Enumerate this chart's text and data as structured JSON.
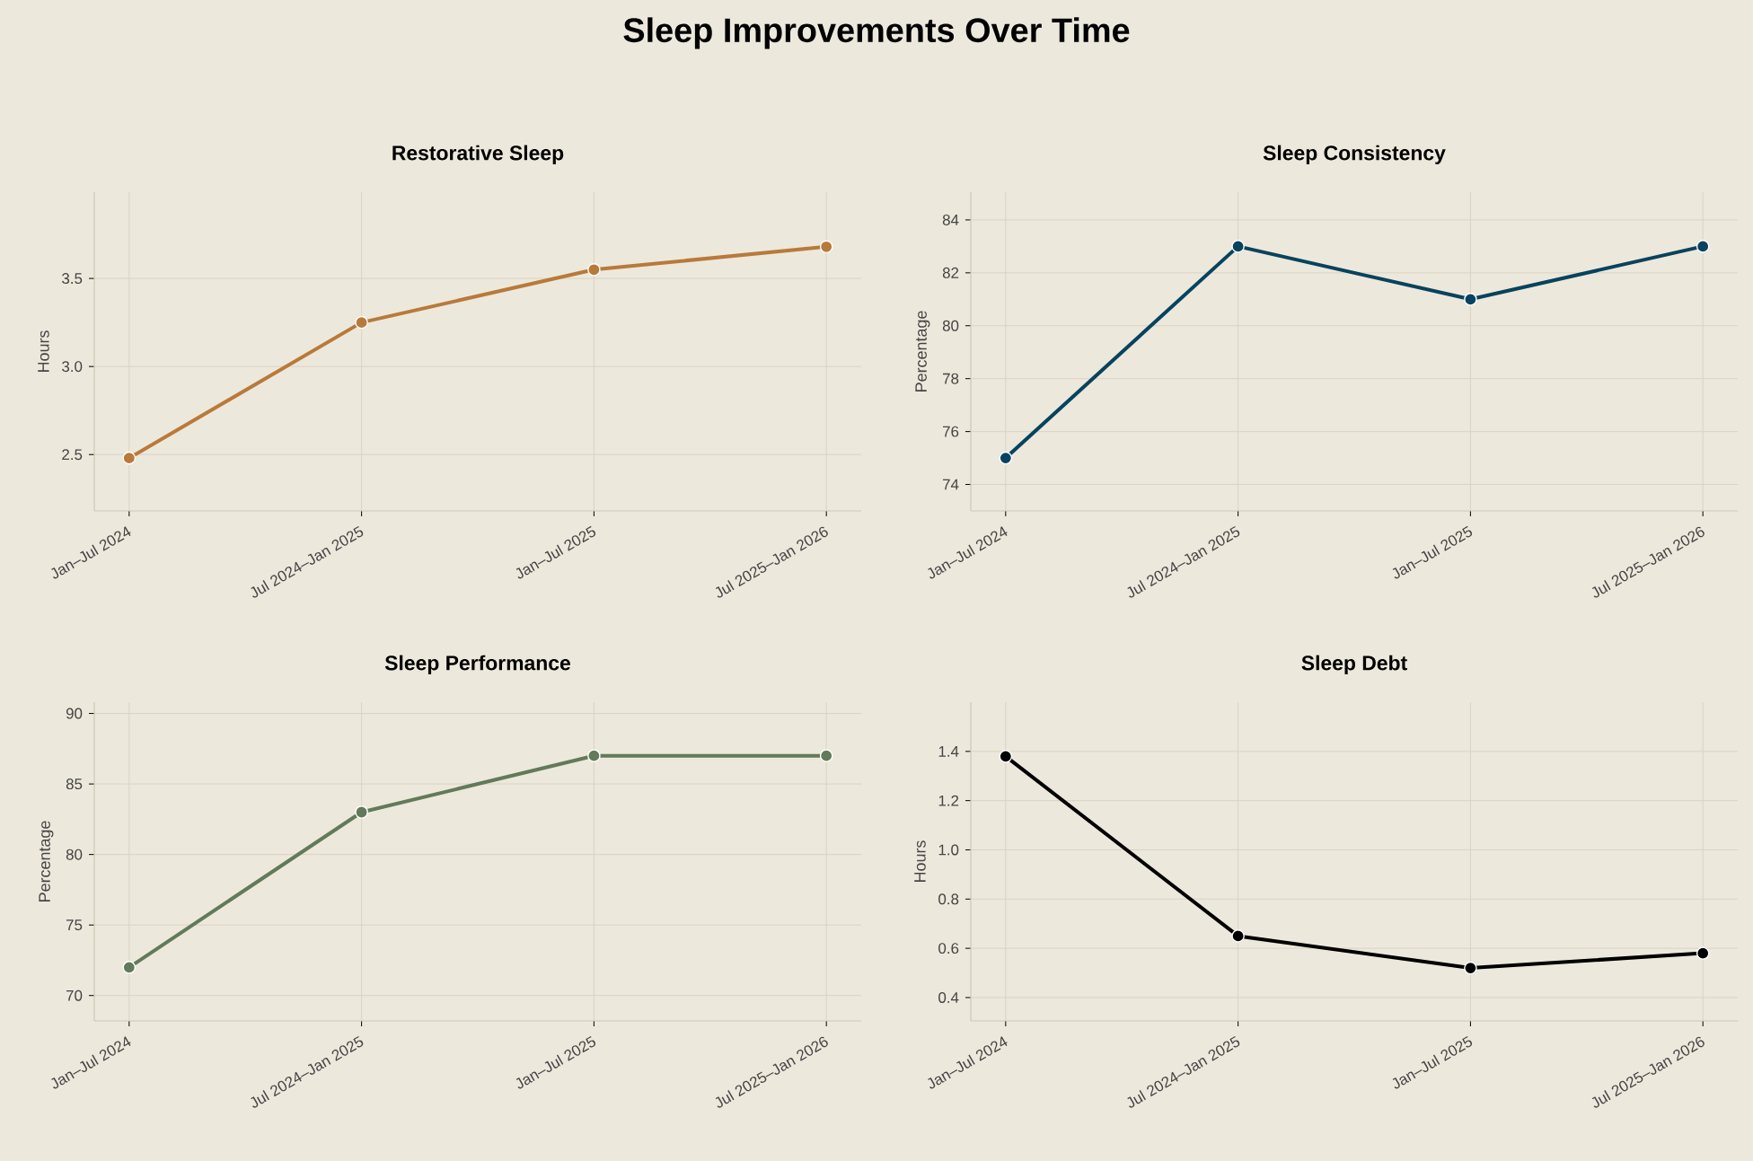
{
  "chart_data": [
    {
      "type": "other",
      "title": "Sleep Improvements Over Time"
    },
    {
      "type": "line",
      "title": "Restorative Sleep",
      "ylabel": "Hours",
      "categories": [
        "Jan–Jul 2024",
        "Jul 2024–Jan 2025",
        "Jan–Jul 2025",
        "Jul 2025–Jan 2026"
      ],
      "values": [
        2.48,
        3.25,
        3.55,
        3.68
      ],
      "color": "#b87a3a",
      "ylim": [
        2.18,
        3.99
      ],
      "yticks": [
        2.5,
        {
          "value": 3,
          "label": "3.0"
        },
        3.5
      ],
      "grid": true,
      "marker": "circle",
      "line_style": "solid"
    },
    {
      "type": "line",
      "title": "Sleep Consistency",
      "ylabel": "Percentage",
      "categories": [
        "Jan–Jul 2024",
        "Jul 2024–Jan 2025",
        "Jan–Jul 2025",
        "Jul 2025–Jan 2026"
      ],
      "values": [
        75,
        83,
        81,
        83
      ],
      "color": "#07435e",
      "ylim": [
        73,
        85.05
      ],
      "yticks": [
        74,
        76,
        78,
        80,
        82,
        84
      ],
      "grid": true,
      "marker": "circle",
      "line_style": "solid"
    },
    {
      "type": "line",
      "title": "Sleep Performance",
      "ylabel": "Percentage",
      "categories": [
        "Jan–Jul 2024",
        "Jul 2024–Jan 2025",
        "Jan–Jul 2025",
        "Jul 2025–Jan 2026"
      ],
      "values": [
        72,
        83,
        87,
        87
      ],
      "color": "#627a5a",
      "ylim": [
        68.2,
        90.8
      ],
      "yticks": [
        70,
        75,
        80,
        85,
        90
      ],
      "grid": true,
      "marker": "circle",
      "line_style": "solid"
    },
    {
      "type": "line",
      "title": "Sleep Debt",
      "ylabel": "Hours",
      "categories": [
        "Jan–Jul 2024",
        "Jul 2024–Jan 2025",
        "Jan–Jul 2025",
        "Jul 2025–Jan 2026"
      ],
      "values": [
        1.38,
        0.65,
        0.52,
        0.58
      ],
      "color": "#000000",
      "ylim": [
        0.305,
        1.6
      ],
      "yticks": [
        0.4,
        0.6,
        0.8,
        {
          "value": 1,
          "label": "1.0"
        },
        1.2,
        1.4
      ],
      "grid": true,
      "marker": "circle",
      "line_style": "solid"
    }
  ]
}
